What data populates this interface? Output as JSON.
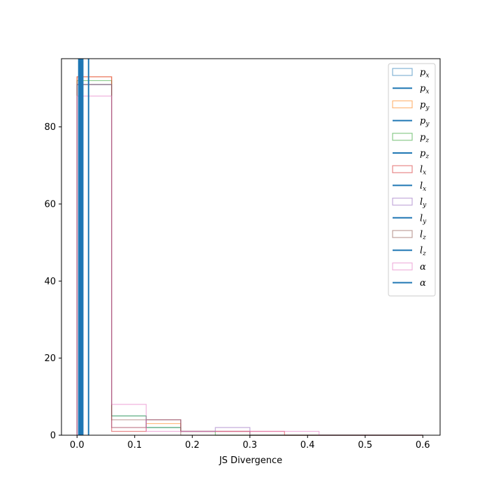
{
  "chart_data": {
    "type": "histogram",
    "title": "",
    "xlabel": "JS Divergence",
    "ylabel": "",
    "xlim": [
      -0.027,
      0.63
    ],
    "ylim": [
      0,
      97.7
    ],
    "xticks": [
      0.0,
      0.1,
      0.2,
      0.3,
      0.4,
      0.5,
      0.6
    ],
    "xtick_labels": [
      "0.0",
      "0.1",
      "0.2",
      "0.3",
      "0.4",
      "0.5",
      "0.6"
    ],
    "yticks": [
      0,
      20,
      40,
      60,
      80
    ],
    "ytick_labels": [
      "0",
      "20",
      "40",
      "60",
      "80"
    ],
    "grid": false,
    "legend_position": "top-right",
    "bin_edges": [
      0.0,
      0.06,
      0.12,
      0.18,
      0.24,
      0.3,
      0.36,
      0.42,
      0.48,
      0.54,
      0.6
    ],
    "series": [
      {
        "name": "p_x",
        "color": "#1f77b4",
        "counts": [
          91,
          5,
          2,
          1,
          1,
          0,
          0,
          0,
          0,
          0
        ],
        "mean_line": 0.003
      },
      {
        "name": "p_y",
        "color": "#ff7f0e",
        "counts": [
          93,
          2,
          3,
          1,
          1,
          0,
          0,
          0,
          0,
          0
        ],
        "mean_line": 0.005
      },
      {
        "name": "p_z",
        "color": "#2ca02c",
        "counts": [
          92,
          5,
          2,
          1,
          0,
          0,
          0,
          0,
          0,
          0
        ],
        "mean_line": 0.006
      },
      {
        "name": "l_x",
        "color": "#d62728",
        "counts": [
          93,
          1,
          4,
          1,
          1,
          1,
          0,
          0,
          0,
          0
        ],
        "mean_line": 0.008
      },
      {
        "name": "l_y",
        "color": "#9467bd",
        "counts": [
          91,
          2,
          4,
          1,
          2,
          0,
          0,
          0,
          0,
          0
        ],
        "mean_line": 0.009
      },
      {
        "name": "l_z",
        "color": "#8c564b",
        "counts": [
          91,
          4,
          4,
          0,
          0,
          0,
          0,
          0,
          0,
          0
        ],
        "mean_line": 0.01
      },
      {
        "name": "α",
        "color": "#e377c2",
        "counts": [
          88,
          8,
          1,
          1,
          1,
          1,
          1,
          0,
          0,
          0
        ],
        "mean_line": 0.02
      }
    ],
    "legend_entries": [
      {
        "base": "p",
        "sub": "x",
        "kind": "patch",
        "color": "#1f77b4"
      },
      {
        "base": "p",
        "sub": "x",
        "kind": "line",
        "color": "#1f77b4"
      },
      {
        "base": "p",
        "sub": "y",
        "kind": "patch",
        "color": "#ff7f0e"
      },
      {
        "base": "p",
        "sub": "y",
        "kind": "line",
        "color": "#1f77b4"
      },
      {
        "base": "p",
        "sub": "z",
        "kind": "patch",
        "color": "#2ca02c"
      },
      {
        "base": "p",
        "sub": "z",
        "kind": "line",
        "color": "#1f77b4"
      },
      {
        "base": "l",
        "sub": "x",
        "kind": "patch",
        "color": "#d62728"
      },
      {
        "base": "l",
        "sub": "x",
        "kind": "line",
        "color": "#1f77b4"
      },
      {
        "base": "l",
        "sub": "y",
        "kind": "patch",
        "color": "#9467bd"
      },
      {
        "base": "l",
        "sub": "y",
        "kind": "line",
        "color": "#1f77b4"
      },
      {
        "base": "l",
        "sub": "z",
        "kind": "patch",
        "color": "#8c564b"
      },
      {
        "base": "l",
        "sub": "z",
        "kind": "line",
        "color": "#1f77b4"
      },
      {
        "base": "α",
        "sub": "",
        "kind": "patch",
        "color": "#e377c2"
      },
      {
        "base": "α",
        "sub": "",
        "kind": "line",
        "color": "#1f77b4"
      }
    ],
    "vline_color": "#1f77b4"
  }
}
